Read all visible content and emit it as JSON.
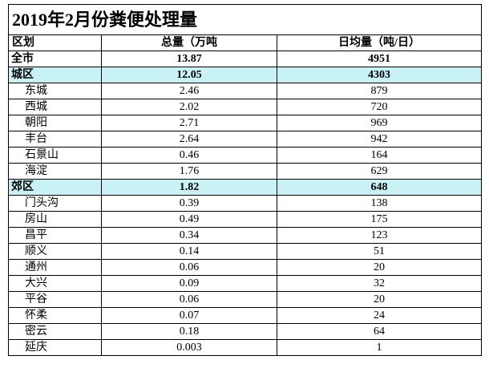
{
  "title": "2019年2月份粪便处理量",
  "table": {
    "header": [
      "区划",
      "总量（万吨",
      "日均量（吨/日）"
    ],
    "rows": [
      [
        "全市",
        "13.87",
        "4951"
      ],
      [
        "城区",
        "12.05",
        "4303"
      ],
      [
        "东城",
        "2.46",
        "879"
      ],
      [
        "西城",
        "2.02",
        "720"
      ],
      [
        "朝阳",
        "2.71",
        "969"
      ],
      [
        "丰台",
        "2.64",
        "942"
      ],
      [
        "石景山",
        "0.46",
        "164"
      ],
      [
        "海淀",
        "1.76",
        "629"
      ],
      [
        "郊区",
        "1.82",
        "648"
      ],
      [
        "门头沟",
        "0.39",
        "138"
      ],
      [
        "房山",
        "0.49",
        "175"
      ],
      [
        "昌平",
        "0.34",
        "123"
      ],
      [
        "顺义",
        "0.14",
        "51"
      ],
      [
        "通州",
        "0.06",
        "20"
      ],
      [
        "大兴",
        "0.09",
        "32"
      ],
      [
        "平谷",
        "0.06",
        "20"
      ],
      [
        "怀柔",
        "0.07",
        "24"
      ],
      [
        "密云",
        "0.18",
        "64"
      ],
      [
        "延庆",
        "0.003",
        "1"
      ]
    ]
  }
}
